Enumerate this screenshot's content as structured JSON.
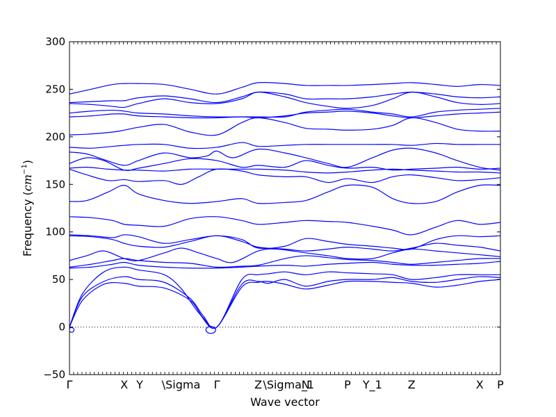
{
  "chart_data": {
    "type": "line",
    "xlabel": "Wave vector",
    "ylabel": "Frequency",
    "ylabel_unit": "cm",
    "ylabel_unit_exp": "−1",
    "ylim": [
      -50,
      300
    ],
    "yticks": [
      -50,
      0,
      50,
      100,
      150,
      200,
      250,
      300
    ],
    "xlim": [
      0,
      1
    ],
    "xticks": [
      {
        "pos": 0.0,
        "label": "Γ"
      },
      {
        "pos": 0.127,
        "label": "X"
      },
      {
        "pos": 0.163,
        "label": "Y"
      },
      {
        "pos": 0.227,
        "label": "\\Sigma"
      },
      {
        "pos": 0.342,
        "label": "Γ"
      },
      {
        "pos": 0.438,
        "label": "Z"
      },
      {
        "pos": 0.462,
        "label": "\\Sigma_1"
      },
      {
        "pos": 0.548,
        "label": "N"
      },
      {
        "pos": 0.645,
        "label": "P"
      },
      {
        "pos": 0.703,
        "label": "Y_1"
      },
      {
        "pos": 0.794,
        "label": "Z"
      },
      {
        "pos": 0.952,
        "label": "X"
      },
      {
        "pos": 1.0,
        "label": "P"
      }
    ],
    "zero_line": true,
    "line_color": "#0000ff",
    "series": [
      {
        "x": [
          0,
          0.03,
          0.08,
          0.127,
          0.16,
          0.22,
          0.28,
          0.31,
          0.342,
          0.4,
          0.438,
          0.462,
          0.5,
          0.548,
          0.6,
          0.645,
          0.703,
          0.75,
          0.794,
          0.85,
          0.9,
          0.952,
          1.0
        ],
        "y": [
          0,
          28,
          45,
          46,
          43,
          41,
          28,
          10,
          0,
          42,
          47,
          48,
          45,
          40,
          44,
          48,
          48,
          47,
          46,
          42,
          44,
          48,
          50
        ]
      },
      {
        "x": [
          0,
          0.03,
          0.08,
          0.127,
          0.16,
          0.22,
          0.28,
          0.31,
          0.342,
          0.4,
          0.438,
          0.462,
          0.5,
          0.548,
          0.6,
          0.645,
          0.703,
          0.75,
          0.794,
          0.85,
          0.9,
          0.952,
          1.0
        ],
        "y": [
          0,
          32,
          48,
          53,
          50,
          47,
          30,
          12,
          0,
          45,
          48,
          46,
          50,
          43,
          48,
          50,
          50,
          52,
          48,
          47,
          50,
          53,
          52
        ]
      },
      {
        "x": [
          0,
          0.03,
          0.08,
          0.127,
          0.16,
          0.22,
          0.26,
          0.3,
          0.342,
          0.4,
          0.438,
          0.462,
          0.5,
          0.548,
          0.6,
          0.645,
          0.703,
          0.75,
          0.794,
          0.85,
          0.9,
          0.952,
          1.0
        ],
        "y": [
          0,
          35,
          58,
          63,
          60,
          55,
          40,
          15,
          0,
          50,
          55,
          56,
          58,
          55,
          58,
          57,
          56,
          55,
          50,
          52,
          55,
          55,
          55
        ]
      },
      {
        "x": [
          0,
          0.05,
          0.1,
          0.127,
          0.16,
          0.22,
          0.28,
          0.342,
          0.4,
          0.438,
          0.5,
          0.548,
          0.6,
          0.645,
          0.703,
          0.75,
          0.794,
          0.85,
          0.9,
          0.952,
          1.0
        ],
        "y": [
          62,
          63,
          66,
          68,
          65,
          63,
          62,
          62,
          63,
          64,
          65,
          64,
          66,
          67,
          68,
          66,
          65,
          65,
          66,
          67,
          69
        ]
      },
      {
        "x": [
          0,
          0.05,
          0.1,
          0.127,
          0.16,
          0.22,
          0.28,
          0.342,
          0.4,
          0.438,
          0.5,
          0.548,
          0.6,
          0.645,
          0.703,
          0.75,
          0.794,
          0.85,
          0.9,
          0.952,
          1.0
        ],
        "y": [
          63,
          66,
          70,
          72,
          70,
          68,
          67,
          63,
          64,
          65,
          72,
          75,
          73,
          71,
          70,
          68,
          66,
          68,
          70,
          72,
          72
        ]
      },
      {
        "x": [
          0,
          0.04,
          0.08,
          0.127,
          0.16,
          0.22,
          0.26,
          0.3,
          0.342,
          0.38,
          0.438,
          0.48,
          0.548,
          0.6,
          0.645,
          0.703,
          0.75,
          0.794,
          0.85,
          0.9,
          0.952,
          1.0
        ],
        "y": [
          70,
          75,
          80,
          72,
          70,
          78,
          83,
          78,
          72,
          68,
          80,
          82,
          78,
          75,
          72,
          72,
          78,
          82,
          80,
          78,
          76,
          74
        ]
      },
      {
        "x": [
          0,
          0.05,
          0.1,
          0.127,
          0.16,
          0.22,
          0.28,
          0.342,
          0.4,
          0.438,
          0.5,
          0.548,
          0.6,
          0.645,
          0.703,
          0.75,
          0.794,
          0.85,
          0.9,
          0.952,
          1.0
        ],
        "y": [
          96,
          95,
          92,
          88,
          85,
          84,
          90,
          96,
          90,
          84,
          82,
          80,
          82,
          84,
          82,
          80,
          83,
          88,
          86,
          84,
          80
        ]
      },
      {
        "x": [
          0,
          0.05,
          0.1,
          0.127,
          0.16,
          0.22,
          0.28,
          0.342,
          0.4,
          0.438,
          0.5,
          0.548,
          0.6,
          0.645,
          0.703,
          0.75,
          0.794,
          0.85,
          0.9,
          0.952,
          1.0
        ],
        "y": [
          97,
          96,
          94,
          97,
          95,
          88,
          92,
          96,
          92,
          83,
          85,
          93,
          90,
          87,
          85,
          83,
          82,
          92,
          96,
          95,
          96
        ]
      },
      {
        "x": [
          0,
          0.05,
          0.1,
          0.127,
          0.16,
          0.22,
          0.28,
          0.342,
          0.4,
          0.438,
          0.5,
          0.548,
          0.6,
          0.645,
          0.703,
          0.75,
          0.794,
          0.85,
          0.9,
          0.952,
          1.0
        ],
        "y": [
          116,
          115,
          112,
          108,
          107,
          106,
          114,
          116,
          112,
          108,
          110,
          112,
          111,
          110,
          106,
          102,
          97,
          105,
          112,
          108,
          110
        ]
      },
      {
        "x": [
          0,
          0.04,
          0.09,
          0.127,
          0.16,
          0.22,
          0.28,
          0.342,
          0.4,
          0.438,
          0.5,
          0.548,
          0.6,
          0.645,
          0.703,
          0.75,
          0.794,
          0.85,
          0.9,
          0.952,
          1.0
        ],
        "y": [
          132,
          133,
          142,
          149,
          140,
          133,
          130,
          132,
          135,
          130,
          131,
          133,
          142,
          149,
          147,
          135,
          130,
          132,
          142,
          149,
          149
        ]
      },
      {
        "x": [
          0,
          0.04,
          0.09,
          0.127,
          0.16,
          0.22,
          0.26,
          0.3,
          0.342,
          0.4,
          0.438,
          0.5,
          0.548,
          0.6,
          0.645,
          0.703,
          0.75,
          0.794,
          0.85,
          0.9,
          0.952,
          1.0
        ],
        "y": [
          166,
          160,
          154,
          155,
          153,
          154,
          150,
          158,
          166,
          164,
          160,
          158,
          158,
          152,
          156,
          152,
          158,
          160,
          157,
          154,
          155,
          157
        ]
      },
      {
        "x": [
          0,
          0.04,
          0.09,
          0.127,
          0.16,
          0.22,
          0.28,
          0.342,
          0.4,
          0.438,
          0.5,
          0.548,
          0.6,
          0.645,
          0.703,
          0.75,
          0.794,
          0.85,
          0.9,
          0.952,
          1.0
        ],
        "y": [
          167,
          168,
          166,
          165,
          165,
          164,
          166,
          166,
          166,
          166,
          165,
          163,
          162,
          163,
          165,
          166,
          165,
          164,
          163,
          163,
          162
        ]
      },
      {
        "x": [
          0,
          0.04,
          0.08,
          0.127,
          0.16,
          0.22,
          0.28,
          0.342,
          0.4,
          0.438,
          0.5,
          0.548,
          0.6,
          0.645,
          0.703,
          0.75,
          0.794,
          0.85,
          0.9,
          0.952,
          1.0
        ],
        "y": [
          172,
          178,
          175,
          165,
          167,
          172,
          177,
          175,
          168,
          170,
          168,
          175,
          170,
          167,
          168,
          165,
          166,
          167,
          168,
          166,
          167
        ]
      },
      {
        "x": [
          0,
          0.04,
          0.08,
          0.127,
          0.16,
          0.22,
          0.28,
          0.32,
          0.342,
          0.38,
          0.438,
          0.5,
          0.548,
          0.6,
          0.645,
          0.703,
          0.75,
          0.794,
          0.85,
          0.9,
          0.952,
          1.0
        ],
        "y": [
          184,
          182,
          176,
          170,
          175,
          183,
          178,
          180,
          185,
          178,
          187,
          183,
          178,
          172,
          168,
          178,
          186,
          188,
          183,
          175,
          168,
          165
        ]
      },
      {
        "x": [
          0,
          0.05,
          0.1,
          0.127,
          0.16,
          0.22,
          0.28,
          0.342,
          0.4,
          0.438,
          0.5,
          0.548,
          0.6,
          0.645,
          0.703,
          0.75,
          0.794,
          0.85,
          0.9,
          0.952,
          1.0
        ],
        "y": [
          189,
          188,
          190,
          191,
          192,
          192,
          188,
          189,
          194,
          190,
          191,
          192,
          192,
          192,
          192,
          192,
          191,
          193,
          192,
          192,
          192
        ]
      },
      {
        "x": [
          0,
          0.05,
          0.1,
          0.127,
          0.16,
          0.22,
          0.28,
          0.342,
          0.4,
          0.438,
          0.5,
          0.548,
          0.6,
          0.645,
          0.703,
          0.75,
          0.794,
          0.85,
          0.9,
          0.952,
          1.0
        ],
        "y": [
          202,
          203,
          205,
          207,
          210,
          213,
          205,
          202,
          215,
          220,
          215,
          209,
          208,
          207,
          208,
          212,
          220,
          215,
          208,
          206,
          206
        ]
      },
      {
        "x": [
          0,
          0.05,
          0.1,
          0.127,
          0.16,
          0.22,
          0.28,
          0.342,
          0.4,
          0.438,
          0.5,
          0.548,
          0.6,
          0.645,
          0.703,
          0.75,
          0.794,
          0.85,
          0.9,
          0.952,
          1.0
        ],
        "y": [
          221,
          222,
          224,
          224,
          222,
          221,
          220,
          220,
          221,
          220,
          222,
          225,
          226,
          227,
          225,
          222,
          220,
          222,
          224,
          225,
          226
        ]
      },
      {
        "x": [
          0,
          0.05,
          0.1,
          0.127,
          0.16,
          0.22,
          0.28,
          0.342,
          0.4,
          0.438,
          0.5,
          0.548,
          0.6,
          0.645,
          0.703,
          0.75,
          0.794,
          0.85,
          0.9,
          0.952,
          1.0
        ],
        "y": [
          225,
          227,
          228,
          227,
          225,
          224,
          222,
          221,
          221,
          221,
          221,
          226,
          228,
          229,
          226,
          224,
          221,
          226,
          228,
          229,
          230
        ]
      },
      {
        "x": [
          0,
          0.05,
          0.1,
          0.127,
          0.16,
          0.22,
          0.28,
          0.342,
          0.4,
          0.438,
          0.5,
          0.548,
          0.6,
          0.645,
          0.703,
          0.75,
          0.794,
          0.85,
          0.9,
          0.952,
          1.0
        ],
        "y": [
          235,
          234,
          232,
          231,
          235,
          240,
          236,
          235,
          240,
          247,
          242,
          236,
          232,
          230,
          233,
          240,
          247,
          242,
          236,
          234,
          235
        ]
      },
      {
        "x": [
          0,
          0.05,
          0.1,
          0.127,
          0.16,
          0.22,
          0.28,
          0.342,
          0.4,
          0.438,
          0.5,
          0.548,
          0.6,
          0.645,
          0.703,
          0.75,
          0.794,
          0.85,
          0.9,
          0.952,
          1.0
        ],
        "y": [
          236,
          237,
          238,
          238,
          241,
          243,
          240,
          236,
          242,
          247,
          245,
          240,
          240,
          240,
          242,
          245,
          247,
          245,
          242,
          241,
          242
        ]
      },
      {
        "x": [
          0,
          0.05,
          0.1,
          0.127,
          0.16,
          0.22,
          0.28,
          0.342,
          0.4,
          0.438,
          0.5,
          0.548,
          0.6,
          0.645,
          0.703,
          0.75,
          0.794,
          0.85,
          0.9,
          0.952,
          1.0
        ],
        "y": [
          245,
          250,
          255,
          256,
          256,
          255,
          250,
          245,
          252,
          257,
          256,
          254,
          254,
          254,
          255,
          256,
          257,
          255,
          253,
          255,
          254
        ]
      }
    ]
  }
}
